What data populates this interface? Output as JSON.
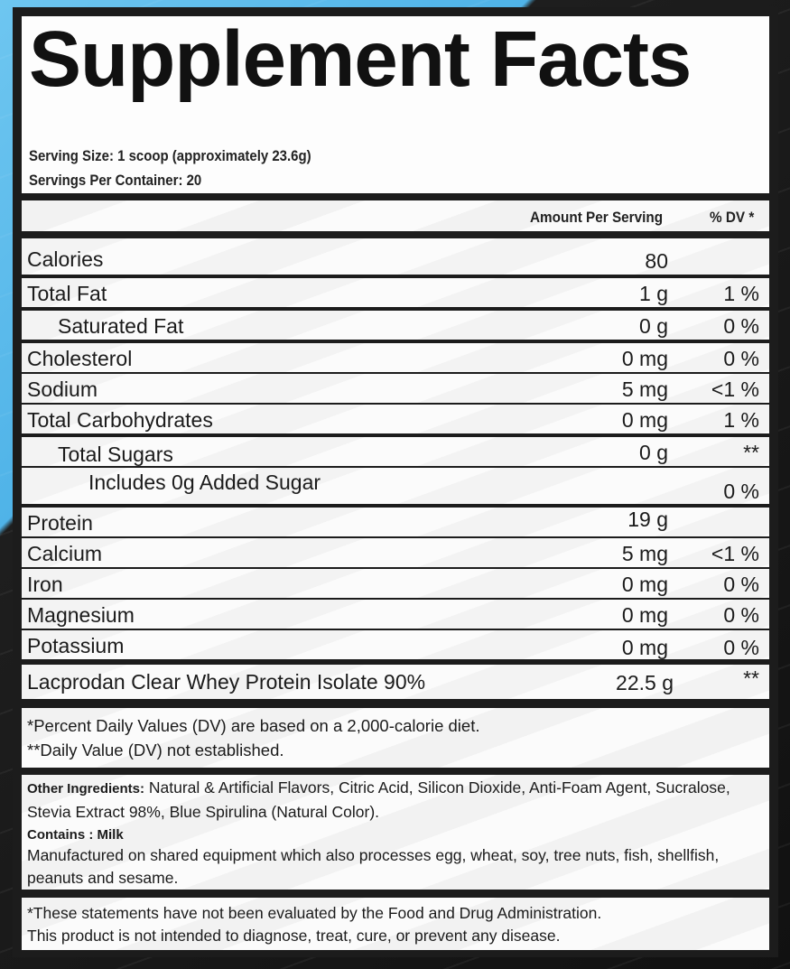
{
  "title": "Supplement Facts",
  "serving_size": "Serving Size: 1 scoop (approximately 23.6g)",
  "servings_per_container": "Servings Per Container: 20",
  "header": {
    "amount": "Amount Per Serving",
    "dv": "% DV *"
  },
  "nutrients": [
    {
      "name": "Calories",
      "amount": "80",
      "dv": ""
    },
    {
      "name": "Total Fat",
      "amount": "1 g",
      "dv": "1 %"
    },
    {
      "name": "Saturated Fat",
      "amount": "0 g",
      "dv": "0 %"
    },
    {
      "name": "Cholesterol",
      "amount": "0 mg",
      "dv": "0 %"
    },
    {
      "name": "Sodium",
      "amount": "5 mg",
      "dv": "<1 %"
    },
    {
      "name": "Total Carbohydrates",
      "amount": "0 mg",
      "dv": "1 %"
    },
    {
      "name": "Total Sugars",
      "amount": "0 g",
      "dv": "**"
    },
    {
      "name": "Includes 0g Added Sugar",
      "amount": "",
      "dv": "0 %"
    },
    {
      "name": "Protein",
      "amount": "19 g",
      "dv": ""
    },
    {
      "name": "Calcium",
      "amount": "5 mg",
      "dv": "<1 %"
    },
    {
      "name": "Iron",
      "amount": "0 mg",
      "dv": "0 %"
    },
    {
      "name": "Magnesium",
      "amount": "0 mg",
      "dv": "0 %"
    },
    {
      "name": "Potassium",
      "amount": "0 mg",
      "dv": "0 %"
    }
  ],
  "blend": {
    "name": "Lacprodan  Clear Whey Protein Isolate 90%",
    "amount": "22.5 g",
    "dv": "**"
  },
  "footnotes": [
    "*Percent Daily Values (DV) are based on a 2,000-calorie diet.",
    "**Daily Value (DV) not established."
  ],
  "ingredients": {
    "label": "Other Ingredients:",
    "text": " Natural & Artificial Flavors, Citric Acid, Silicon Dioxide, Anti-Foam Agent, Sucralose, Stevia Extract 98%, Blue Spirulina (Natural Color).",
    "contains_label": "Contains : Milk",
    "manufactured": "Manufactured on shared equipment which also processes egg, wheat, soy, tree nuts, fish, shellfish, peanuts and sesame."
  },
  "disclaimer": [
    "*These statements have not been evaluated by the Food and Drug Administration.",
    "This product is not intended to diagnose, treat, cure, or prevent any disease."
  ]
}
